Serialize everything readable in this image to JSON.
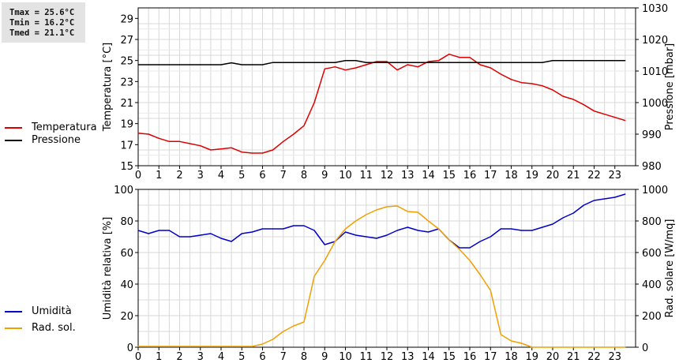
{
  "stats": {
    "tmax": "Tmax = 25.6°C",
    "tmin": "Tmin = 16.2°C",
    "tmed": "Tmed = 21.1°C"
  },
  "colors": {
    "temperature": "#dd0000",
    "pressure": "#000000",
    "humidity": "#0000cc",
    "solar": "#f0a000",
    "grid": "#d8d8d8"
  },
  "chart_data": [
    {
      "type": "line",
      "x_ticks": [
        "0",
        "1",
        "2",
        "3",
        "4",
        "5",
        "6",
        "7",
        "8",
        "9",
        "10",
        "11",
        "12",
        "13",
        "14",
        "15",
        "16",
        "17",
        "18",
        "19",
        "20",
        "21",
        "22",
        "23"
      ],
      "xlim": [
        0,
        24
      ],
      "ylabel_left": "Temperatura [°C]",
      "ylim_left": [
        15,
        30
      ],
      "yticks_left": [
        "15",
        "17",
        "19",
        "21",
        "23",
        "25",
        "27",
        "29"
      ],
      "ylabel_right": "Pressione [mbar]",
      "ylim_right": [
        980,
        1030
      ],
      "yticks_right": [
        "980",
        "990",
        "1000",
        "1010",
        "1020",
        "1030"
      ],
      "grid": true,
      "legend": [
        {
          "label": "Temperatura",
          "color": "#dd0000"
        },
        {
          "label": "Pressione",
          "color": "#000000"
        }
      ],
      "series": [
        {
          "name": "Temperatura",
          "axis": "left",
          "color": "#dd0000",
          "x": [
            0,
            0.5,
            1,
            1.5,
            2,
            2.5,
            3,
            3.5,
            4,
            4.5,
            5,
            5.5,
            6,
            6.5,
            7,
            7.5,
            8,
            8.5,
            9,
            9.5,
            10,
            10.5,
            11,
            11.5,
            12,
            12.5,
            13,
            13.5,
            14,
            14.5,
            15,
            15.5,
            16,
            16.5,
            17,
            17.5,
            18,
            18.5,
            19,
            19.5,
            20,
            20.5,
            21,
            21.5,
            22,
            22.5,
            23,
            23.5
          ],
          "y": [
            18.1,
            18.0,
            17.6,
            17.3,
            17.3,
            17.1,
            16.9,
            16.5,
            16.6,
            16.7,
            16.3,
            16.2,
            16.2,
            16.5,
            17.3,
            18.0,
            18.8,
            21.0,
            24.2,
            24.4,
            24.1,
            24.3,
            24.6,
            24.9,
            24.9,
            24.1,
            24.6,
            24.4,
            24.9,
            25.0,
            25.6,
            25.3,
            25.3,
            24.6,
            24.3,
            23.7,
            23.2,
            22.9,
            22.8,
            22.6,
            22.2,
            21.6,
            21.3,
            20.8,
            20.2,
            19.9,
            19.6,
            19.3
          ]
        },
        {
          "name": "Pressione",
          "axis": "right",
          "color": "#000000",
          "x": [
            0,
            0.5,
            1,
            1.5,
            2,
            2.5,
            3,
            3.5,
            4,
            4.5,
            5,
            5.5,
            6,
            6.5,
            7,
            7.5,
            8,
            8.5,
            9,
            9.5,
            10,
            10.5,
            11,
            11.5,
            12,
            12.5,
            13,
            13.5,
            14,
            14.5,
            15,
            15.5,
            16,
            16.5,
            17,
            17.5,
            18,
            18.5,
            19,
            19.5,
            20,
            20.5,
            21,
            21.5,
            22,
            22.5,
            23,
            23.5
          ],
          "y": [
            1012,
            1012,
            1012,
            1012,
            1012,
            1012,
            1012,
            1012,
            1012,
            1012.6,
            1012,
            1012,
            1012,
            1012.7,
            1012.7,
            1012.7,
            1012.7,
            1012.7,
            1012.7,
            1012.7,
            1013.3,
            1013.3,
            1012.7,
            1012.7,
            1012.7,
            1012.7,
            1012.7,
            1012.7,
            1012.7,
            1012.7,
            1012.7,
            1012.7,
            1012.7,
            1012.7,
            1012.7,
            1012.7,
            1012.7,
            1012.7,
            1012.7,
            1012.7,
            1013.3,
            1013.3,
            1013.3,
            1013.3,
            1013.3,
            1013.3,
            1013.3,
            1013.3
          ]
        }
      ]
    },
    {
      "type": "line",
      "x_ticks": [
        "0",
        "1",
        "2",
        "3",
        "4",
        "5",
        "6",
        "7",
        "8",
        "9",
        "10",
        "11",
        "12",
        "13",
        "14",
        "15",
        "16",
        "17",
        "18",
        "19",
        "20",
        "21",
        "22",
        "23"
      ],
      "xlim": [
        0,
        24
      ],
      "ylabel_left": "Umidità relativa [%]",
      "ylim_left": [
        0,
        100
      ],
      "yticks_left": [
        "0",
        "20",
        "40",
        "60",
        "80",
        "100"
      ],
      "ylabel_right": "Rad. solare [W/mq]",
      "ylim_right": [
        0,
        1000
      ],
      "yticks_right": [
        "0",
        "200",
        "400",
        "600",
        "800",
        "1000"
      ],
      "grid": true,
      "legend": [
        {
          "label": "Umidità",
          "color": "#0000cc"
        },
        {
          "label": "Rad. sol.",
          "color": "#f0a000"
        }
      ],
      "series": [
        {
          "name": "Umidità",
          "axis": "left",
          "color": "#0000cc",
          "x": [
            0,
            0.5,
            1,
            1.5,
            2,
            2.5,
            3,
            3.5,
            4,
            4.5,
            5,
            5.5,
            6,
            6.5,
            7,
            7.5,
            8,
            8.5,
            9,
            9.5,
            10,
            10.5,
            11,
            11.5,
            12,
            12.5,
            13,
            13.5,
            14,
            14.5,
            15,
            15.5,
            16,
            16.5,
            17,
            17.5,
            18,
            18.5,
            19,
            19.5,
            20,
            20.5,
            21,
            21.5,
            22,
            22.5,
            23,
            23.5
          ],
          "y": [
            74,
            72,
            74,
            74,
            70,
            70,
            71,
            72,
            69,
            67,
            72,
            73,
            75,
            75,
            75,
            77,
            77,
            74,
            65,
            67,
            73,
            71,
            70,
            69,
            71,
            74,
            76,
            74,
            73,
            75,
            68,
            63,
            63,
            67,
            70,
            75,
            75,
            74,
            74,
            76,
            78,
            82,
            85,
            90,
            93,
            94,
            95,
            97
          ]
        },
        {
          "name": "Rad. sol.",
          "axis": "right",
          "color": "#f0a000",
          "x": [
            0,
            0.5,
            1,
            1.5,
            2,
            2.5,
            3,
            3.5,
            4,
            4.5,
            5,
            5.5,
            6,
            6.5,
            7,
            7.5,
            8,
            8.5,
            9,
            9.5,
            10,
            10.5,
            11,
            11.5,
            12,
            12.5,
            13,
            13.5,
            14,
            14.5,
            15,
            15.5,
            16,
            16.5,
            17,
            17.5,
            18,
            18.5,
            19,
            19.5,
            20,
            20.5,
            21,
            21.5,
            22,
            22.5,
            23,
            23.5
          ],
          "y": [
            5,
            5,
            5,
            5,
            5,
            5,
            5,
            5,
            5,
            5,
            5,
            5,
            20,
            50,
            100,
            135,
            160,
            450,
            550,
            670,
            750,
            800,
            840,
            870,
            890,
            895,
            860,
            855,
            800,
            750,
            680,
            620,
            550,
            460,
            360,
            80,
            40,
            25,
            0,
            0,
            0,
            0,
            0,
            0,
            0,
            0,
            0,
            0
          ]
        }
      ]
    }
  ]
}
